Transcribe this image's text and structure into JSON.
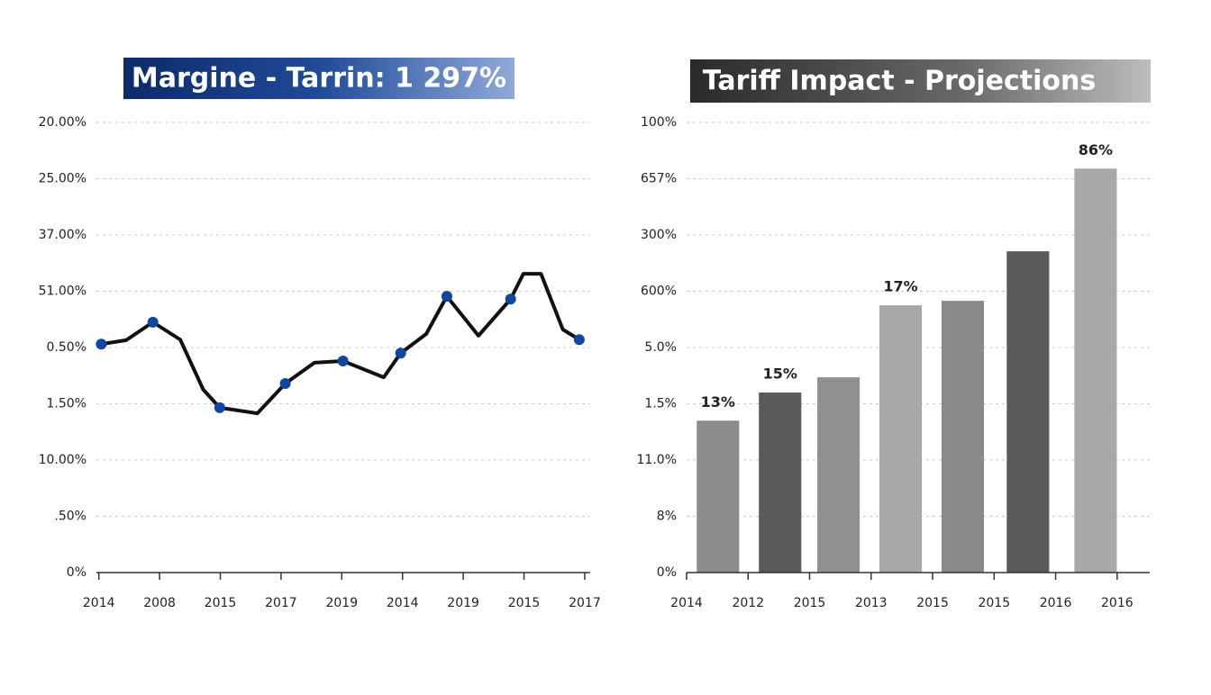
{
  "chart_data": [
    {
      "type": "line",
      "title": "Margine - Tarrin: 1 297%",
      "xlim": [
        -0.04,
        8.09
      ],
      "xticks": [
        {
          "value": 0,
          "label": "2014"
        },
        {
          "value": 1,
          "label": "2008"
        },
        {
          "value": 2,
          "label": "2015"
        },
        {
          "value": 3,
          "label": "2017"
        },
        {
          "value": 4,
          "label": "2019"
        },
        {
          "value": 5,
          "label": "2014"
        },
        {
          "value": 6,
          "label": "2019"
        },
        {
          "value": 7,
          "label": "2015"
        },
        {
          "value": 8,
          "label": "2017"
        }
      ],
      "ylim": [
        0,
        8
      ],
      "yticks": [
        {
          "value": 0,
          "label": "0%"
        },
        {
          "value": 1,
          "label": ".50%"
        },
        {
          "value": 2,
          "label": "10.00%"
        },
        {
          "value": 3,
          "label": "1.50%"
        },
        {
          "value": 4,
          "label": "0.50%"
        },
        {
          "value": 5,
          "label": "51.00%"
        },
        {
          "value": 6,
          "label": "37.00%"
        },
        {
          "value": 7,
          "label": "25.00%"
        },
        {
          "value": 8,
          "label": "20.00%"
        }
      ],
      "grid": true,
      "series": [
        {
          "color": "#111111",
          "x": [
            0.04,
            0.45,
            0.89,
            1.34,
            1.72,
            1.99,
            2.61,
            3.07,
            3.55,
            4.02,
            4.69,
            4.97,
            5.39,
            5.73,
            6.25,
            6.78,
            6.99,
            7.28,
            7.64,
            7.91
          ],
          "values": [
            4.06,
            4.13,
            4.45,
            4.14,
            3.25,
            2.93,
            2.83,
            3.36,
            3.73,
            3.76,
            3.47,
            3.9,
            4.24,
            4.91,
            4.21,
            4.86,
            5.31,
            5.31,
            4.32,
            4.14
          ]
        }
      ],
      "points": {
        "color": "#0d47a1",
        "x": [
          0.04,
          0.89,
          1.99,
          3.07,
          4.02,
          4.97,
          5.73,
          6.78,
          7.91
        ],
        "values": [
          4.06,
          4.45,
          2.93,
          3.36,
          3.76,
          3.9,
          4.91,
          4.86,
          4.14
        ]
      }
    },
    {
      "type": "bar",
      "title": "Tariff Impact - Projections",
      "xlim": [
        0,
        7.53
      ],
      "xticks": [
        {
          "value": 0,
          "label": "2014"
        },
        {
          "value": 1,
          "label": "2012"
        },
        {
          "value": 2,
          "label": "2015"
        },
        {
          "value": 3,
          "label": "2013"
        },
        {
          "value": 4,
          "label": "2015"
        },
        {
          "value": 5,
          "label": "2015"
        },
        {
          "value": 6,
          "label": "2016"
        },
        {
          "value": 7,
          "label": "2016"
        }
      ],
      "ylim": [
        0,
        8
      ],
      "yticks": [
        {
          "value": 0,
          "label": "0%"
        },
        {
          "value": 1,
          "label": "8%"
        },
        {
          "value": 2,
          "label": "11.0%"
        },
        {
          "value": 3,
          "label": "1.5%"
        },
        {
          "value": 4,
          "label": "5.0%"
        },
        {
          "value": 5,
          "label": "600%"
        },
        {
          "value": 6,
          "label": "300%"
        },
        {
          "value": 7,
          "label": "657%"
        },
        {
          "value": 8,
          "label": "100%"
        }
      ],
      "grid": true,
      "x": [
        0.51,
        1.52,
        2.47,
        3.48,
        4.49,
        5.55,
        6.65
      ],
      "values": [
        2.7,
        3.2,
        3.47,
        4.75,
        4.83,
        5.71,
        7.18
      ],
      "value_labels": [
        "13%",
        "15%",
        null,
        "17%",
        null,
        null,
        "86%"
      ],
      "colors": [
        "#8c8c8c",
        "#5a5a5a",
        "#909090",
        "#a8a8a8",
        "#8a8a8a",
        "#5a5a5a",
        "#a8a8a8"
      ]
    }
  ]
}
